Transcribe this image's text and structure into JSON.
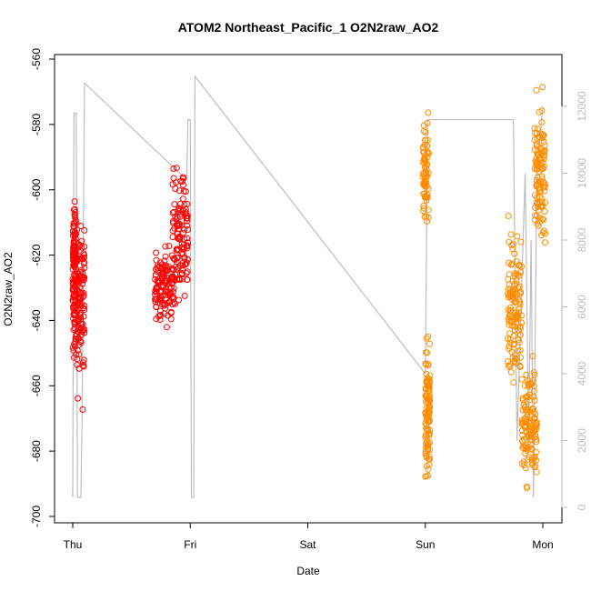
{
  "chart_data": {
    "type": "scatter",
    "title": "ATOM2 Northeast_Pacific_1 O2N2raw_AO2",
    "xlabel": "Date",
    "ylabel": "O2N2raw_AO2",
    "x_ticks": [
      "Thu",
      "Fri",
      "Sat",
      "Sun",
      "Mon"
    ],
    "xlim_days": [
      0,
      4
    ],
    "ylim": [
      -700,
      -560
    ],
    "y_ticks": [
      -700,
      -680,
      -660,
      -640,
      -620,
      -600,
      -580,
      -560
    ],
    "y2lim": [
      0,
      12000
    ],
    "y2_ticks": [
      0,
      2000,
      4000,
      6000,
      8000,
      10000,
      12000
    ],
    "grid": false,
    "colors": {
      "series1": "#ff0000",
      "series2": "#ff8c00",
      "line": "#bebebe",
      "axis": "#000000",
      "secondary_axis": "#bdbdbd"
    },
    "series": [
      {
        "marker": "open-circle",
        "color": "#ff0000",
        "clusters": [
          {
            "x": [
              0.0,
              0.03
            ],
            "y": [
              -655,
              -595
            ],
            "density": 0.9
          },
          {
            "x": [
              0.03,
              0.1
            ],
            "y": [
              -672,
              -600
            ],
            "density": 0.8
          },
          {
            "x": [
              0.7,
              0.86
            ],
            "y": [
              -645,
              -615
            ],
            "density": 0.9
          },
          {
            "x": [
              0.85,
              0.98
            ],
            "y": [
              -642,
              -586
            ],
            "density": 0.9
          }
        ]
      },
      {
        "marker": "open-circle",
        "color": "#ff8c00",
        "clusters": [
          {
            "x": [
              2.98,
              3.03
            ],
            "y": [
              -618,
              -572
            ],
            "density": 0.5
          },
          {
            "x": [
              3.0,
              3.04
            ],
            "y": [
              -695,
              -640
            ],
            "density": 0.8
          },
          {
            "x": [
              3.7,
              3.82
            ],
            "y": [
              -665,
              -605
            ],
            "density": 0.9
          },
          {
            "x": [
              3.82,
              3.95
            ],
            "y": [
              -696,
              -645
            ],
            "density": 0.9
          },
          {
            "x": [
              3.93,
              4.02
            ],
            "y": [
              -630,
              -565
            ],
            "density": 0.8
          }
        ]
      }
    ],
    "line_series": {
      "color": "#bebebe",
      "axis": "right",
      "points": [
        [
          0.0,
          300
        ],
        [
          0.01,
          11800
        ],
        [
          0.03,
          11800
        ],
        [
          0.04,
          300
        ],
        [
          0.07,
          300
        ],
        [
          0.08,
          2800
        ],
        [
          0.1,
          12700
        ],
        [
          0.97,
          9800
        ],
        [
          0.98,
          11600
        ],
        [
          1.0,
          11600
        ],
        [
          1.01,
          300
        ],
        [
          1.03,
          300
        ],
        [
          1.04,
          12900
        ],
        [
          3.0,
          4000
        ],
        [
          3.02,
          11600
        ],
        [
          3.75,
          11600
        ],
        [
          3.76,
          8000
        ],
        [
          3.78,
          2000
        ],
        [
          3.85,
          10000
        ],
        [
          3.88,
          2000
        ],
        [
          3.9,
          8000
        ],
        [
          3.92,
          300
        ],
        [
          3.95,
          10000
        ],
        [
          4.0,
          12000
        ]
      ]
    }
  }
}
